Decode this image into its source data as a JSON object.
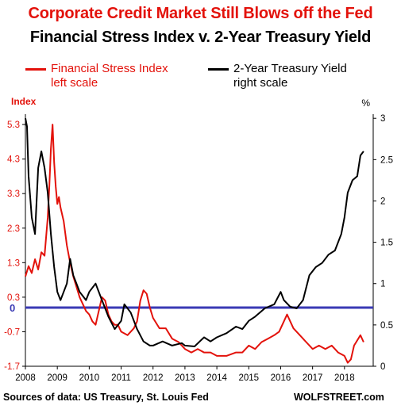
{
  "titles": {
    "main": "Corporate Credit Market Still Blows off the Fed",
    "sub": "Financial Stress Index v. 2-Year Treasury Yield"
  },
  "legend": {
    "stress_line1": "Financial Stress Index",
    "stress_line2": "left scale",
    "yield_line1": "2-Year Treasury Yield",
    "yield_line2": "right scale"
  },
  "footer": {
    "source": "Sources of data: US Treasury, St. Louis Fed",
    "brand": "WOLFSTREET.com"
  },
  "colors": {
    "stress": "#e3120b",
    "yield": "#000000",
    "zero_line": "#3a3ab4",
    "title_red": "#e3120b"
  },
  "chart_data": {
    "type": "line",
    "x_axis": {
      "range": [
        2008,
        2018.9
      ],
      "ticks": [
        "2008",
        "2009",
        "2010",
        "2011",
        "2012",
        "2013",
        "2014",
        "2015",
        "2016",
        "2017",
        "2018"
      ]
    },
    "left_axis": {
      "label": "Index",
      "range": [
        -1.7,
        5.6
      ],
      "ticks": [
        "5.3",
        "4.3",
        "3.3",
        "2.3",
        "1.3",
        "0.3",
        "-0.7",
        "-1.7"
      ],
      "tick_values": [
        5.3,
        4.3,
        3.3,
        2.3,
        1.3,
        0.3,
        -0.7,
        -1.7
      ]
    },
    "right_axis": {
      "label": "%",
      "range": [
        0,
        3.05
      ],
      "ticks": [
        "3",
        "2.5",
        "2",
        "1.5",
        "1",
        "0.5",
        "0"
      ],
      "tick_values": [
        3,
        2.5,
        2,
        1.5,
        1,
        0.5,
        0
      ]
    },
    "zero_line": {
      "label": "0",
      "value": 0
    },
    "grid": false,
    "series": [
      {
        "name": "Financial Stress Index",
        "axis": "left",
        "x": [
          2008.0,
          2008.1,
          2008.2,
          2008.3,
          2008.4,
          2008.5,
          2008.6,
          2008.7,
          2008.75,
          2008.8,
          2008.85,
          2008.9,
          2008.95,
          2009.0,
          2009.05,
          2009.1,
          2009.2,
          2009.3,
          2009.4,
          2009.5,
          2009.6,
          2009.7,
          2009.8,
          2009.9,
          2010.0,
          2010.1,
          2010.2,
          2010.3,
          2010.4,
          2010.5,
          2010.6,
          2010.7,
          2010.8,
          2010.9,
          2011.0,
          2011.2,
          2011.4,
          2011.5,
          2011.6,
          2011.7,
          2011.8,
          2011.9,
          2012.0,
          2012.2,
          2012.4,
          2012.6,
          2012.8,
          2013.0,
          2013.2,
          2013.4,
          2013.6,
          2013.8,
          2014.0,
          2014.3,
          2014.6,
          2014.8,
          2015.0,
          2015.2,
          2015.4,
          2015.6,
          2015.8,
          2015.95,
          2016.1,
          2016.2,
          2016.4,
          2016.6,
          2016.8,
          2017.0,
          2017.2,
          2017.4,
          2017.6,
          2017.8,
          2018.0,
          2018.1,
          2018.2,
          2018.3,
          2018.5,
          2018.6
        ],
        "y": [
          0.9,
          1.2,
          1.0,
          1.4,
          1.1,
          1.6,
          1.5,
          2.6,
          3.5,
          4.6,
          5.3,
          4.2,
          3.5,
          3.0,
          3.2,
          2.9,
          2.5,
          1.8,
          1.3,
          0.9,
          0.6,
          0.3,
          0.1,
          -0.1,
          -0.2,
          -0.4,
          -0.5,
          -0.1,
          0.3,
          0.2,
          -0.2,
          -0.4,
          -0.5,
          -0.5,
          -0.7,
          -0.8,
          -0.6,
          -0.4,
          0.2,
          0.5,
          0.4,
          0.0,
          -0.3,
          -0.6,
          -0.6,
          -0.9,
          -1.0,
          -1.2,
          -1.3,
          -1.2,
          -1.3,
          -1.3,
          -1.4,
          -1.4,
          -1.3,
          -1.3,
          -1.1,
          -1.2,
          -1.0,
          -0.9,
          -0.8,
          -0.7,
          -0.4,
          -0.2,
          -0.6,
          -0.8,
          -1.0,
          -1.2,
          -1.1,
          -1.2,
          -1.1,
          -1.3,
          -1.4,
          -1.6,
          -1.5,
          -1.1,
          -0.8,
          -1.0
        ]
      },
      {
        "name": "2-Year Treasury Yield",
        "axis": "right",
        "x": [
          2008.0,
          2008.05,
          2008.1,
          2008.2,
          2008.3,
          2008.4,
          2008.5,
          2008.6,
          2008.7,
          2008.8,
          2008.9,
          2009.0,
          2009.1,
          2009.2,
          2009.3,
          2009.4,
          2009.5,
          2009.6,
          2009.7,
          2009.8,
          2009.9,
          2010.0,
          2010.2,
          2010.4,
          2010.6,
          2010.8,
          2011.0,
          2011.1,
          2011.3,
          2011.5,
          2011.7,
          2011.9,
          2012.0,
          2012.3,
          2012.6,
          2012.9,
          2013.0,
          2013.3,
          2013.6,
          2013.8,
          2014.0,
          2014.3,
          2014.6,
          2014.8,
          2015.0,
          2015.2,
          2015.5,
          2015.8,
          2016.0,
          2016.1,
          2016.3,
          2016.5,
          2016.7,
          2016.9,
          2017.1,
          2017.3,
          2017.5,
          2017.7,
          2017.9,
          2018.0,
          2018.1,
          2018.25,
          2018.4,
          2018.5,
          2018.6
        ],
        "y": [
          3.0,
          2.9,
          2.3,
          1.8,
          1.6,
          2.4,
          2.6,
          2.4,
          2.1,
          1.6,
          1.2,
          0.9,
          0.8,
          0.9,
          1.0,
          1.3,
          1.1,
          1.0,
          0.9,
          0.85,
          0.8,
          0.9,
          1.0,
          0.8,
          0.6,
          0.45,
          0.55,
          0.75,
          0.65,
          0.45,
          0.3,
          0.25,
          0.25,
          0.3,
          0.25,
          0.28,
          0.25,
          0.24,
          0.35,
          0.3,
          0.35,
          0.4,
          0.48,
          0.45,
          0.55,
          0.6,
          0.7,
          0.75,
          0.9,
          0.8,
          0.72,
          0.7,
          0.8,
          1.1,
          1.2,
          1.25,
          1.35,
          1.4,
          1.6,
          1.8,
          2.1,
          2.25,
          2.3,
          2.55,
          2.6
        ]
      }
    ]
  }
}
